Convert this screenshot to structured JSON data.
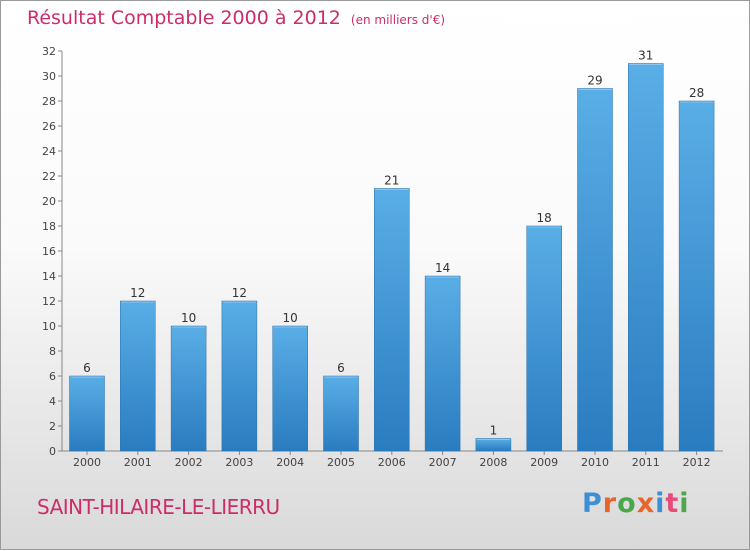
{
  "header": {
    "title": "Résultat Comptable 2000 à 2012",
    "subtitle": "(en milliers d'€)"
  },
  "footer": {
    "commune": "SAINT-HILAIRE-LE-LIERRU",
    "brand": "Proxiti"
  },
  "colors": {
    "title": "#cc2d6a",
    "bar_light": "#5aaee6",
    "bar_dark": "#2a7cc0",
    "brand_letters": [
      "#3a8fd6",
      "#e8642a",
      "#4aa84a",
      "#e8642a",
      "#3a8fd6",
      "#e84a7a",
      "#4aa84a"
    ]
  },
  "chart_data": {
    "type": "bar",
    "categories": [
      "2000",
      "2001",
      "2002",
      "2003",
      "2004",
      "2005",
      "2006",
      "2007",
      "2008",
      "2009",
      "2010",
      "2011",
      "2012"
    ],
    "values": [
      6,
      12,
      10,
      12,
      10,
      6,
      21,
      14,
      1,
      18,
      29,
      31,
      28
    ],
    "title": "Résultat Comptable 2000 à 2012",
    "subtitle": "(en milliers d'€)",
    "xlabel": "",
    "ylabel": "",
    "ylim": [
      0,
      32
    ],
    "yticks": [
      0,
      2,
      4,
      6,
      8,
      10,
      12,
      14,
      16,
      18,
      20,
      22,
      24,
      26,
      28,
      30,
      32
    ],
    "grid": false,
    "legend": "none"
  }
}
